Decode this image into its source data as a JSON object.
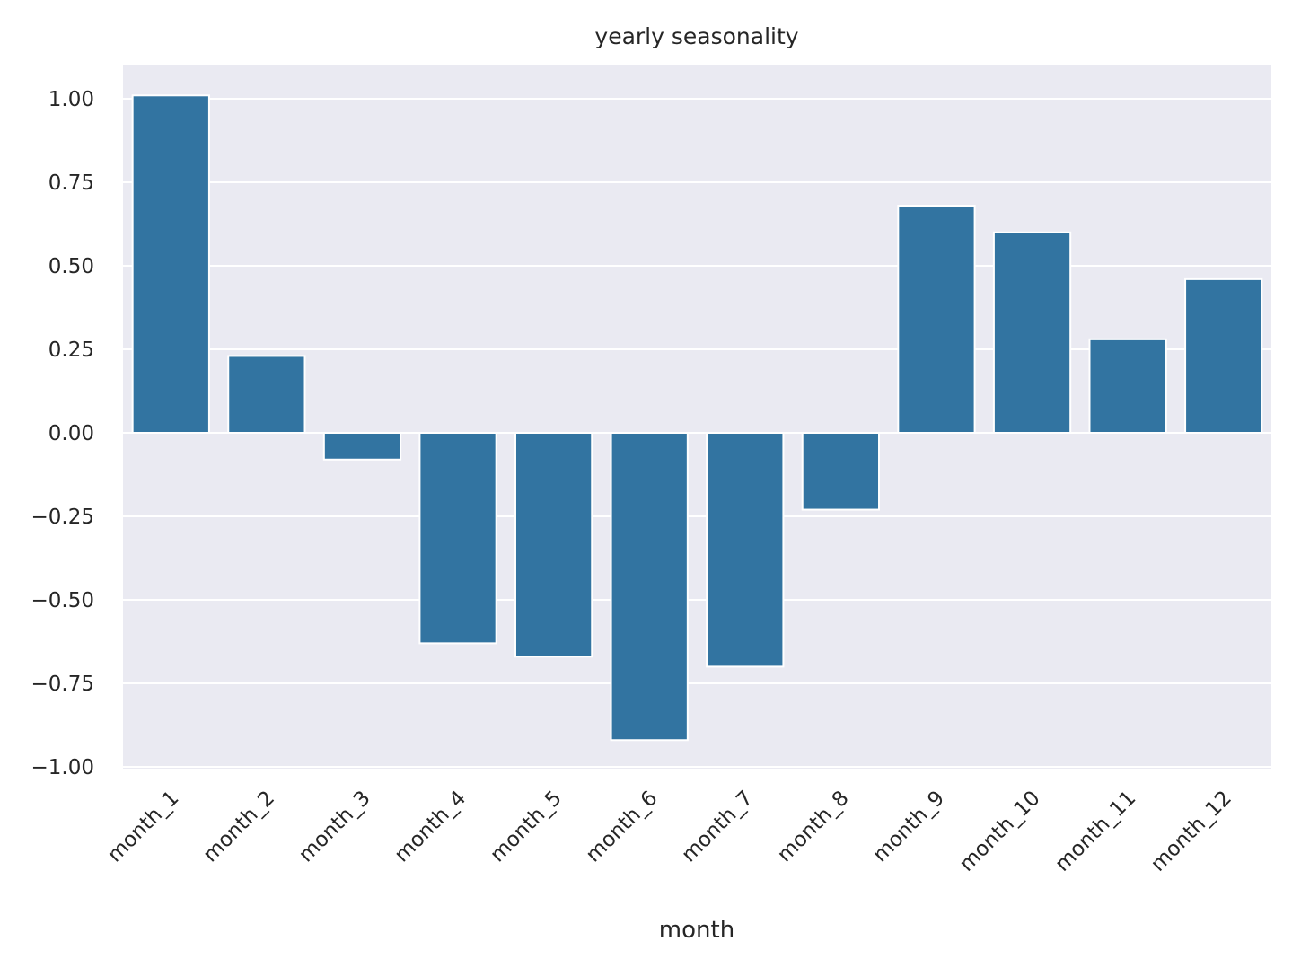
{
  "chart_data": {
    "type": "bar",
    "title": "yearly seasonality",
    "xlabel": "month",
    "ylabel": "",
    "categories": [
      "month_1",
      "month_2",
      "month_3",
      "month_4",
      "month_5",
      "month_6",
      "month_7",
      "month_8",
      "month_9",
      "month_10",
      "month_11",
      "month_12"
    ],
    "values": [
      1.01,
      0.23,
      -0.08,
      -0.63,
      -0.67,
      -0.92,
      -0.7,
      -0.23,
      0.68,
      0.6,
      0.28,
      0.46
    ],
    "ylim": [
      -1.0,
      1.1
    ],
    "yticks": [
      1.0,
      0.75,
      0.5,
      0.25,
      0.0,
      -0.25,
      -0.5,
      -0.75,
      -1.0
    ],
    "ytick_labels": [
      "1.00",
      "0.75",
      "0.50",
      "0.25",
      "0.00",
      "−0.25",
      "−0.50",
      "−0.75",
      "−1.00"
    ],
    "grid": true,
    "colors": {
      "bar": "#3274a1",
      "plot_background": "#eaeaf2",
      "grid": "#ffffff",
      "text": "#262626"
    }
  }
}
